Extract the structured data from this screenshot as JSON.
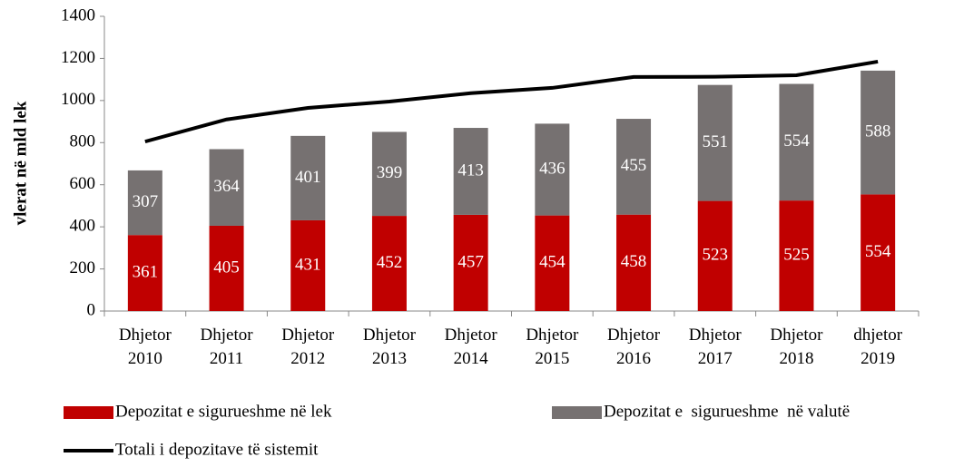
{
  "chart_data": {
    "type": "stacked-bar-line",
    "y_label": "vlerat në mld lek",
    "categories": [
      "Dhjetor 2010",
      "Dhjetor 2011",
      "Dhjetor 2012",
      "Dhjetor 2013",
      "Dhjetor 2014",
      "Dhjetor 2015",
      "Dhjetor 2016",
      "Dhjetor 2017",
      "Dhjetor 2018",
      "dhjetor 2019"
    ],
    "series": [
      {
        "name": "Depozitat e sigurueshme në lek",
        "color": "#c00000",
        "kind": "bar",
        "values": [
          361,
          405,
          431,
          452,
          457,
          454,
          458,
          523,
          525,
          554
        ]
      },
      {
        "name": "Depozitat e  sigurueshme  në valutë",
        "color": "#767171",
        "kind": "bar",
        "values": [
          307,
          364,
          401,
          399,
          413,
          436,
          455,
          551,
          554,
          588
        ]
      },
      {
        "name": "Totali i depozitave të sistemit",
        "color": "#000000",
        "kind": "line",
        "values": [
          805,
          910,
          965,
          995,
          1035,
          1060,
          1112,
          1113,
          1120,
          1185
        ]
      }
    ],
    "ylim": [
      0,
      1400
    ],
    "yticks": [
      0,
      200,
      400,
      600,
      800,
      1000,
      1200,
      1400
    ],
    "grid": false
  }
}
